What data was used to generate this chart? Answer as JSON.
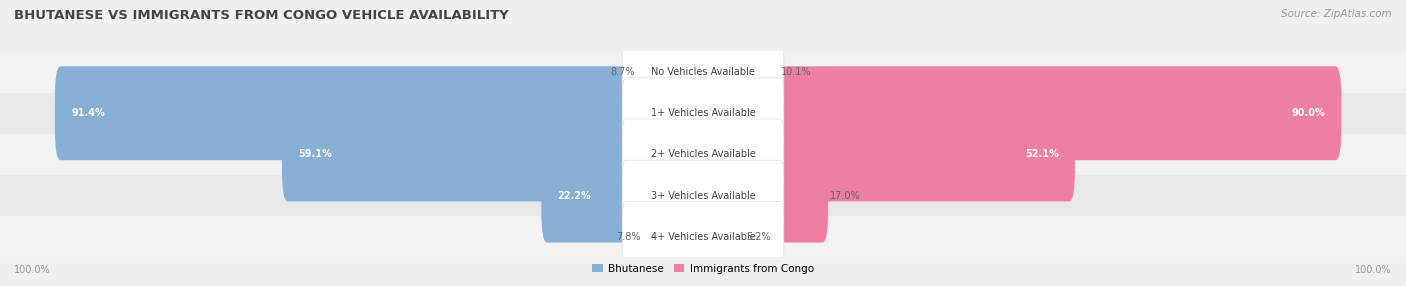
{
  "title": "BHUTANESE VS IMMIGRANTS FROM CONGO VEHICLE AVAILABILITY",
  "source": "Source: ZipAtlas.com",
  "categories": [
    "No Vehicles Available",
    "1+ Vehicles Available",
    "2+ Vehicles Available",
    "3+ Vehicles Available",
    "4+ Vehicles Available"
  ],
  "bhutanese": [
    8.7,
    91.4,
    59.1,
    22.2,
    7.8
  ],
  "congo": [
    10.1,
    90.0,
    52.1,
    17.0,
    5.2
  ],
  "bhutanese_color": "#88afd4",
  "congo_color": "#ee7fa0",
  "row_bg_colors": [
    "#f2f2f2",
    "#e8e8e8"
  ],
  "label_color_dark": "#666666",
  "label_color_white": "#ffffff",
  "center_label_color": "#444444",
  "title_color": "#444444",
  "source_color": "#999999",
  "footer_color": "#999999",
  "figsize": [
    14.06,
    2.86
  ],
  "dpi": 100
}
